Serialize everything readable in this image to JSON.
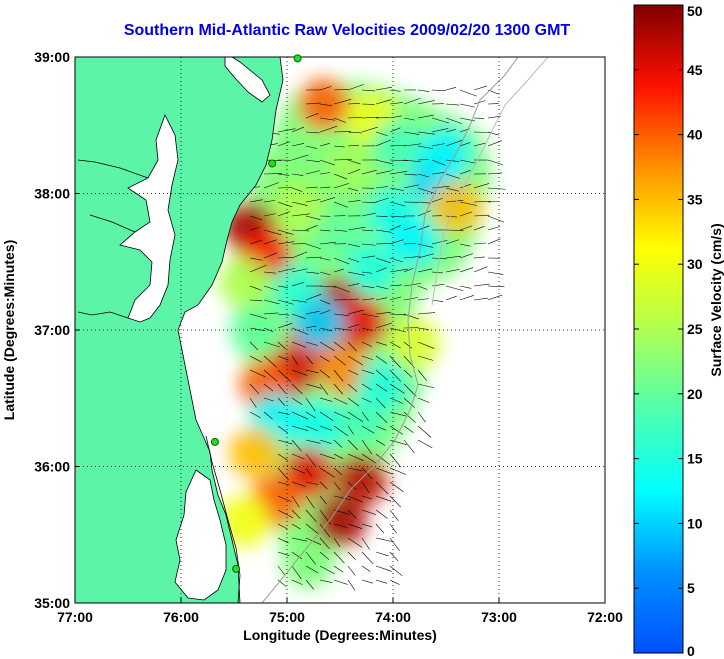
{
  "title": "Southern Mid-Atlantic Raw Velocities 2009/02/20 1300 GMT",
  "map": {
    "xlabel": "Longitude (Degrees:Minutes)",
    "ylabel": "Latitude (Degrees:Minutes)",
    "lon_range": [
      -77,
      -72
    ],
    "lat_range": [
      35,
      39
    ],
    "lon_ticks": [
      {
        "value": -77,
        "label": "77:00"
      },
      {
        "value": -76,
        "label": "76:00"
      },
      {
        "value": -75,
        "label": "75:00"
      },
      {
        "value": -74,
        "label": "74:00"
      },
      {
        "value": -73,
        "label": "73:00"
      },
      {
        "value": -72,
        "label": "72:00"
      }
    ],
    "lat_ticks": [
      {
        "value": 35,
        "label": "35:00"
      },
      {
        "value": 36,
        "label": "36:00"
      },
      {
        "value": 37,
        "label": "37:00"
      },
      {
        "value": 38,
        "label": "38:00"
      },
      {
        "value": 39,
        "label": "39:00"
      }
    ],
    "grid": "dotted",
    "land_color": "#5cf5a8",
    "ocean_color": "#ffffff"
  },
  "colorbar": {
    "label": "Surface Velocity (cm/s)",
    "range": [
      0,
      50
    ],
    "ticks": [
      {
        "value": 0,
        "label": "0"
      },
      {
        "value": 5,
        "label": "5"
      },
      {
        "value": 10,
        "label": "10"
      },
      {
        "value": 15,
        "label": "15"
      },
      {
        "value": 20,
        "label": "20"
      },
      {
        "value": 25,
        "label": "25"
      },
      {
        "value": 30,
        "label": "30"
      },
      {
        "value": 35,
        "label": "35"
      },
      {
        "value": 40,
        "label": "40"
      },
      {
        "value": 45,
        "label": "45"
      },
      {
        "value": 50,
        "label": "50"
      }
    ]
  },
  "stations": [
    {
      "lon": -74.9,
      "lat": 38.99
    },
    {
      "lon": -75.14,
      "lat": 38.22
    },
    {
      "lon": -75.68,
      "lat": 36.18
    },
    {
      "lon": -75.48,
      "lat": 35.25
    }
  ],
  "velocity_patches": [
    {
      "lon": -75.35,
      "lat": 37.75,
      "speed": 48
    },
    {
      "lon": -75.2,
      "lat": 37.55,
      "speed": 44
    },
    {
      "lon": -74.55,
      "lat": 37.2,
      "speed": 47
    },
    {
      "lon": -74.3,
      "lat": 37.05,
      "speed": 45
    },
    {
      "lon": -74.75,
      "lat": 36.95,
      "speed": 42
    },
    {
      "lon": -74.95,
      "lat": 36.7,
      "speed": 46
    },
    {
      "lon": -75.2,
      "lat": 36.6,
      "speed": 40
    },
    {
      "lon": -74.45,
      "lat": 36.7,
      "speed": 38
    },
    {
      "lon": -75.1,
      "lat": 36.35,
      "speed": 12
    },
    {
      "lon": -74.7,
      "lat": 36.3,
      "speed": 14
    },
    {
      "lon": -74.3,
      "lat": 36.35,
      "speed": 18
    },
    {
      "lon": -75.3,
      "lat": 36.1,
      "speed": 35
    },
    {
      "lon": -74.8,
      "lat": 35.95,
      "speed": 45
    },
    {
      "lon": -74.3,
      "lat": 35.9,
      "speed": 47
    },
    {
      "lon": -74.5,
      "lat": 35.6,
      "speed": 48
    },
    {
      "lon": -75.1,
      "lat": 35.75,
      "speed": 40
    },
    {
      "lon": -74.8,
      "lat": 35.3,
      "speed": 22
    },
    {
      "lon": -74.65,
      "lat": 38.65,
      "speed": 40
    },
    {
      "lon": -74.2,
      "lat": 38.55,
      "speed": 30
    },
    {
      "lon": -74.85,
      "lat": 38.3,
      "speed": 22
    },
    {
      "lon": -74.4,
      "lat": 38.2,
      "speed": 24
    },
    {
      "lon": -73.95,
      "lat": 38.35,
      "speed": 18
    },
    {
      "lon": -73.6,
      "lat": 38.1,
      "speed": 10
    },
    {
      "lon": -73.4,
      "lat": 37.9,
      "speed": 35
    },
    {
      "lon": -73.5,
      "lat": 38.3,
      "speed": 12
    },
    {
      "lon": -74.0,
      "lat": 37.85,
      "speed": 14
    },
    {
      "lon": -74.5,
      "lat": 37.7,
      "speed": 20
    },
    {
      "lon": -74.9,
      "lat": 37.9,
      "speed": 25
    },
    {
      "lon": -73.8,
      "lat": 37.65,
      "speed": 12
    },
    {
      "lon": -74.2,
      "lat": 37.45,
      "speed": 15
    },
    {
      "lon": -74.9,
      "lat": 37.3,
      "speed": 16
    },
    {
      "lon": -74.7,
      "lat": 37.05,
      "speed": 10
    },
    {
      "lon": -75.3,
      "lat": 37.0,
      "speed": 20
    },
    {
      "lon": -75.4,
      "lat": 37.35,
      "speed": 25
    },
    {
      "lon": -74.1,
      "lat": 36.6,
      "speed": 15
    },
    {
      "lon": -73.8,
      "lat": 36.9,
      "speed": 28
    },
    {
      "lon": -75.4,
      "lat": 35.6,
      "speed": 30
    }
  ]
}
